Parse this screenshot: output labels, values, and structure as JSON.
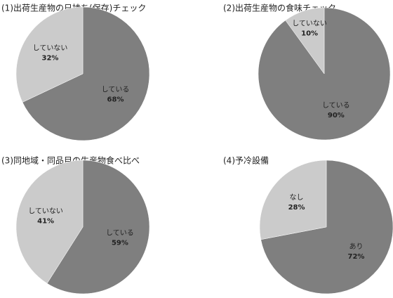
{
  "chart_data": [
    {
      "type": "pie",
      "title": "(1)出荷生産物の日持ち(保存)チェック",
      "categories": [
        "している",
        "していない"
      ],
      "values": [
        68,
        32
      ],
      "value_labels": [
        "68%",
        "32%"
      ],
      "colors": [
        "#7f7f7f",
        "#cbcbcb"
      ]
    },
    {
      "type": "pie",
      "title": "(2)出荷生産物の食味チェック",
      "categories": [
        "している",
        "していない"
      ],
      "values": [
        90,
        10
      ],
      "value_labels": [
        "90%",
        "10%"
      ],
      "colors": [
        "#7f7f7f",
        "#cbcbcb"
      ]
    },
    {
      "type": "pie",
      "title": "(3)同地域・同品目の生産物食べ比べ",
      "categories": [
        "している",
        "していない"
      ],
      "values": [
        59,
        41
      ],
      "value_labels": [
        "59%",
        "41%"
      ],
      "colors": [
        "#7f7f7f",
        "#cbcbcb"
      ]
    },
    {
      "type": "pie",
      "title": "(4)予冷設備",
      "categories": [
        "あり",
        "なし"
      ],
      "values": [
        72,
        28
      ],
      "value_labels": [
        "72%",
        "28%"
      ],
      "colors": [
        "#7f7f7f",
        "#cbcbcb"
      ]
    }
  ]
}
